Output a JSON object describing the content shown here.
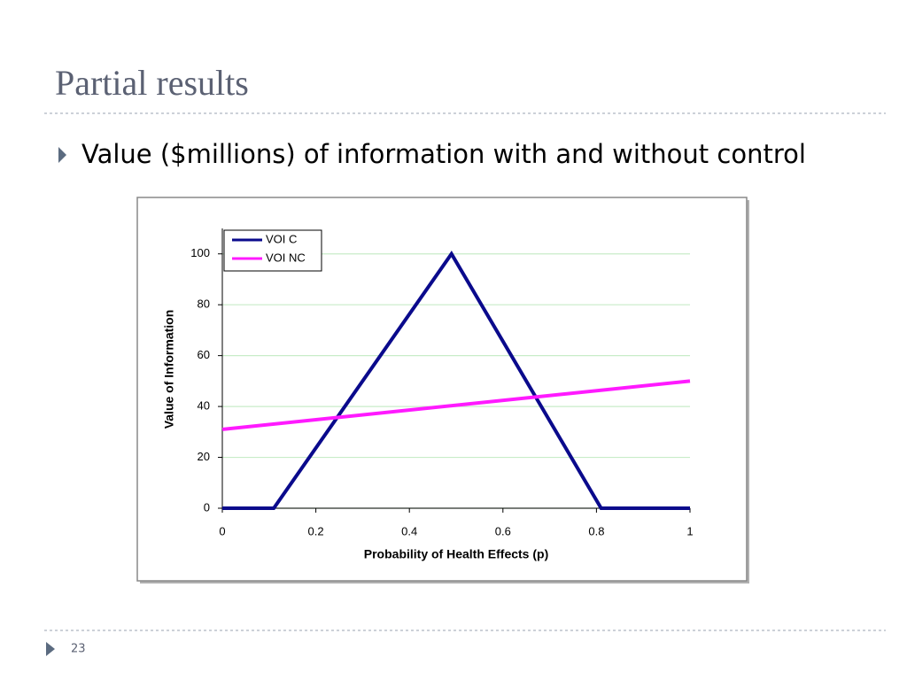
{
  "slide": {
    "title": "Partial results",
    "bullet": "Value ($millions) of information with and without control",
    "page_number": "23"
  },
  "chart_data": {
    "type": "line",
    "xlabel": "Probability of Health Effects (p)",
    "ylabel": "Value of Information",
    "xlim": [
      0,
      1
    ],
    "xticks": [
      0,
      0.2,
      0.4,
      0.6,
      0.8,
      1
    ],
    "ylim": [
      0,
      110
    ],
    "yticks": [
      0,
      20,
      40,
      60,
      80,
      100
    ],
    "grid": true,
    "grid_color": "#c8ecc8",
    "legend": "upper left",
    "series": [
      {
        "name": "VOI C",
        "color": "#0a0a8c",
        "x": [
          0,
          0.11,
          0.49,
          0.81,
          1
        ],
        "values": [
          0,
          0,
          100,
          0,
          0
        ]
      },
      {
        "name": "VOI NC",
        "color": "#ff1aff",
        "x": [
          0,
          1
        ],
        "values": [
          31,
          50
        ]
      }
    ]
  }
}
